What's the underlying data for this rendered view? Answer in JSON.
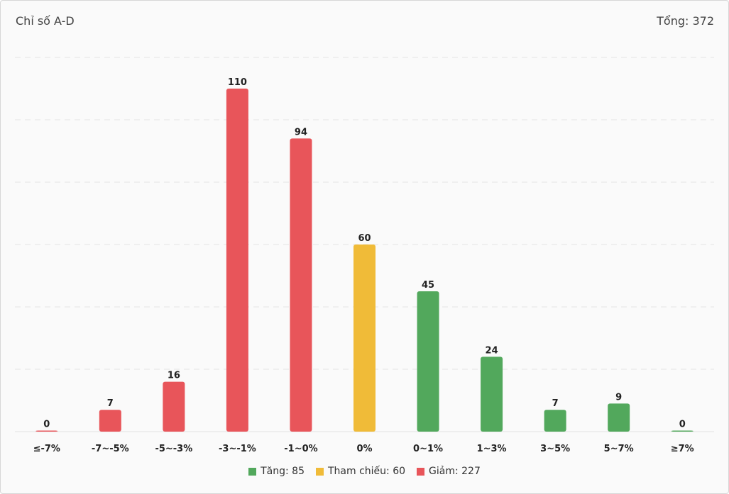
{
  "header": {
    "title": "Chỉ số A-D",
    "total_label": "Tổng: 372"
  },
  "colors": {
    "up": "#52a85c",
    "ref": "#f0bb38",
    "down": "#e8555a",
    "grid": "#e4e4e4"
  },
  "legend": [
    {
      "label": "Tăng: 85",
      "color_key": "up"
    },
    {
      "label": "Tham chiếu: 60",
      "color_key": "ref"
    },
    {
      "label": "Giảm: 227",
      "color_key": "down"
    }
  ],
  "chart_data": {
    "type": "bar",
    "categories": [
      "≤-7%",
      "-7~-5%",
      "-5~-3%",
      "-3~-1%",
      "-1~0%",
      "0%",
      "0~1%",
      "1~3%",
      "3~5%",
      "5~7%",
      "≥7%"
    ],
    "values": [
      0,
      7,
      16,
      110,
      94,
      60,
      45,
      24,
      7,
      9,
      0
    ],
    "color_keys": [
      "down",
      "down",
      "down",
      "down",
      "down",
      "ref",
      "up",
      "up",
      "up",
      "up",
      "up"
    ],
    "ylim": [
      0,
      120
    ],
    "grid": true,
    "legend_position": "bottom-center"
  }
}
